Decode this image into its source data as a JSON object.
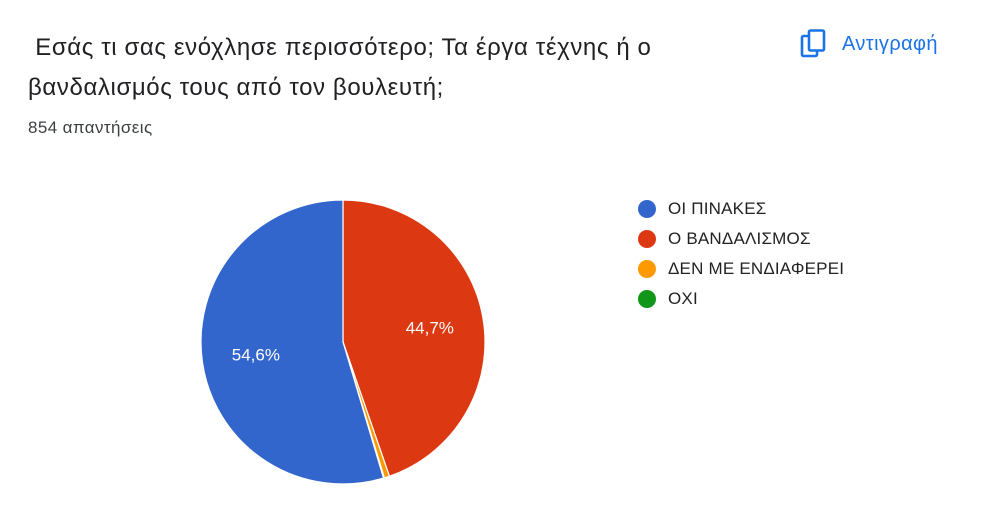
{
  "question": {
    "title": " Εσάς τι σας ενόχλησε περισσότερο; Τα έργα τέχνης ή ο βανδαλισμός τους από τον βουλευτή;",
    "response_count": "854 απαντήσεις"
  },
  "copy_button": {
    "label": "Αντιγραφή",
    "icon": "copy-icon",
    "color": "#1a73e8"
  },
  "chart_data": {
    "type": "pie",
    "title": "",
    "legend_position": "right",
    "start": "top",
    "direction": "clockwise",
    "slices": [
      {
        "label": "Ο ΒΑΝΔΑΛΙΣΜΟΣ",
        "value": 44.7,
        "display": "44,7%",
        "color": "#dc3912",
        "show_label": true
      },
      {
        "label": "ΔΕΝ ΜΕ ΕΝΔΙΑΦΕΡΕΙ",
        "value": 0.6,
        "display": "",
        "color": "#ff9900",
        "show_label": false
      },
      {
        "label": "ΟΧΙ",
        "value": 0.1,
        "display": "",
        "color": "#109618",
        "show_label": false
      },
      {
        "label": "ΟΙ ΠΙΝΑΚΕΣ",
        "value": 54.6,
        "display": "54,6%",
        "color": "#3366cc",
        "show_label": true
      }
    ],
    "legend": [
      {
        "label": "ΟΙ ΠΙΝΑΚΕΣ",
        "color": "#3366cc"
      },
      {
        "label": "Ο ΒΑΝΔΑΛΙΣΜΟΣ",
        "color": "#dc3912"
      },
      {
        "label": "ΔΕΝ ΜΕ ΕΝΔΙΑΦΕΡΕΙ",
        "color": "#ff9900"
      },
      {
        "label": "ΟΧΙ",
        "color": "#109618"
      }
    ]
  }
}
